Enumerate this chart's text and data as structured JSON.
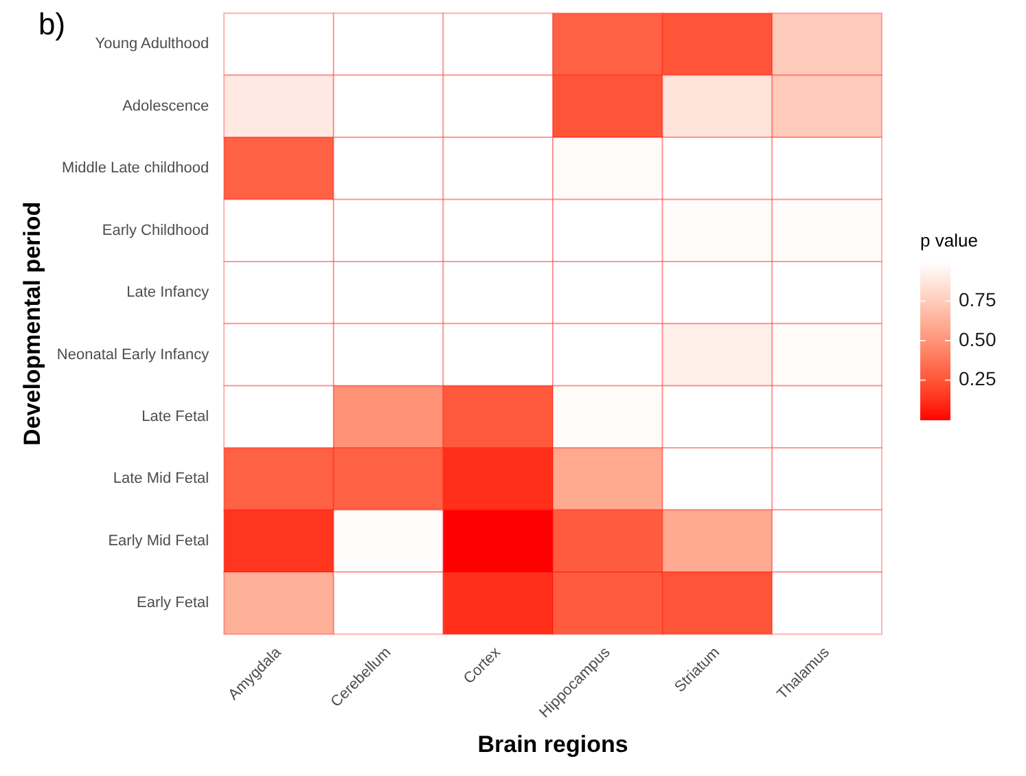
{
  "chart_data": {
    "type": "heatmap",
    "xlabel": "Brain regions",
    "ylabel": "Developmental period",
    "clabel": "p value",
    "annotations": [
      "b)"
    ],
    "categories": [
      "Amygdala",
      "Cerebellum",
      "Cortex",
      "Hippocampus",
      "Striatum",
      "Thalamus"
    ],
    "y_categories": [
      "Young Adulthood",
      "Adolescence",
      "Middle Late childhood",
      "Early Childhood",
      "Late Infancy",
      "Neonatal Early Infancy",
      "Late Fetal",
      "Late Mid Fetal",
      "Early Mid Fetal",
      "Early Fetal"
    ],
    "cells": [
      [
        1,
        1,
        1,
        0.3,
        0.25,
        0.75
      ],
      [
        0.9,
        1,
        1,
        0.25,
        0.87,
        0.75
      ],
      [
        0.3,
        1,
        1,
        0.98,
        1,
        1
      ],
      [
        1,
        1,
        1,
        1,
        0.98,
        0.98
      ],
      [
        1,
        1,
        1,
        1,
        1,
        1
      ],
      [
        1,
        1,
        1,
        1,
        0.92,
        0.98
      ],
      [
        1,
        0.5,
        0.27,
        0.98,
        1,
        1
      ],
      [
        0.3,
        0.3,
        0.12,
        0.6,
        1,
        1
      ],
      [
        0.14,
        0.99,
        0,
        0.28,
        0.6,
        1
      ],
      [
        0.63,
        1,
        0.12,
        0.28,
        0.25,
        1
      ]
    ],
    "clim": [
      0,
      1
    ],
    "cticks": [
      0.25,
      {
        "value": 0.5,
        "label": "0.50"
      },
      0.75
    ]
  }
}
